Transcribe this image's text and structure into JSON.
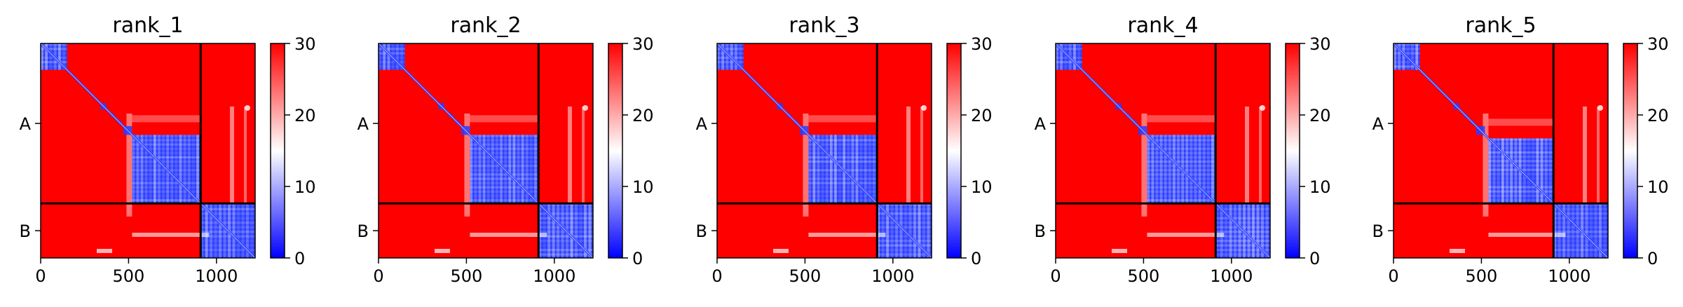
{
  "chart_data": [
    {
      "type": "heatmap",
      "title": "rank_1",
      "xlim": [
        0,
        1220
      ],
      "xticks": [
        0,
        500,
        1000
      ],
      "y_tick_labels": [
        "A",
        "B"
      ],
      "chain_lengths": [
        910,
        310
      ],
      "colorbar": {
        "min": 0,
        "max": 30,
        "ticks": [
          0,
          10,
          20,
          30
        ],
        "colormap": "bwr"
      },
      "blue_blocks": [
        [
          0,
          150,
          0,
          150
        ],
        [
          520,
          910,
          520,
          910
        ],
        [
          910,
          1220,
          910,
          1220
        ]
      ]
    },
    {
      "type": "heatmap",
      "title": "rank_2",
      "xlim": [
        0,
        1220
      ],
      "xticks": [
        0,
        500,
        1000
      ],
      "y_tick_labels": [
        "A",
        "B"
      ],
      "chain_lengths": [
        910,
        310
      ],
      "colorbar": {
        "min": 0,
        "max": 30,
        "ticks": [
          0,
          10,
          20,
          30
        ],
        "colormap": "bwr"
      },
      "blue_blocks": [
        [
          0,
          150,
          0,
          150
        ],
        [
          520,
          910,
          520,
          910
        ],
        [
          910,
          1220,
          910,
          1220
        ]
      ]
    },
    {
      "type": "heatmap",
      "title": "rank_3",
      "xlim": [
        0,
        1220
      ],
      "xticks": [
        0,
        500,
        1000
      ],
      "y_tick_labels": [
        "A",
        "B"
      ],
      "chain_lengths": [
        910,
        310
      ],
      "colorbar": {
        "min": 0,
        "max": 30,
        "ticks": [
          0,
          10,
          20,
          30
        ],
        "colormap": "bwr"
      },
      "blue_blocks": [
        [
          0,
          150,
          0,
          150
        ],
        [
          520,
          910,
          520,
          910
        ],
        [
          910,
          1220,
          910,
          1220
        ]
      ]
    },
    {
      "type": "heatmap",
      "title": "rank_4",
      "xlim": [
        0,
        1220
      ],
      "xticks": [
        0,
        500,
        1000
      ],
      "y_tick_labels": [
        "A",
        "B"
      ],
      "chain_lengths": [
        910,
        310
      ],
      "colorbar": {
        "min": 0,
        "max": 30,
        "ticks": [
          0,
          10,
          20,
          30
        ],
        "colormap": "bwr"
      },
      "blue_blocks": [
        [
          0,
          150,
          0,
          150
        ],
        [
          520,
          910,
          520,
          910
        ],
        [
          910,
          1220,
          910,
          1220
        ]
      ]
    },
    {
      "type": "heatmap",
      "title": "rank_5",
      "xlim": [
        0,
        1220
      ],
      "xticks": [
        0,
        500,
        1000
      ],
      "y_tick_labels": [
        "A",
        "B"
      ],
      "chain_lengths": [
        910,
        310
      ],
      "colorbar": {
        "min": 0,
        "max": 30,
        "ticks": [
          0,
          10,
          20,
          30
        ],
        "colormap": "bwr"
      },
      "blue_blocks": [
        [
          0,
          150,
          0,
          150
        ],
        [
          540,
          910,
          540,
          910
        ],
        [
          910,
          1220,
          910,
          1220
        ]
      ]
    }
  ],
  "colors": {
    "high": "#ff0000",
    "mid": "#ffffff",
    "low": "#0000ff",
    "divider": "#000000"
  }
}
